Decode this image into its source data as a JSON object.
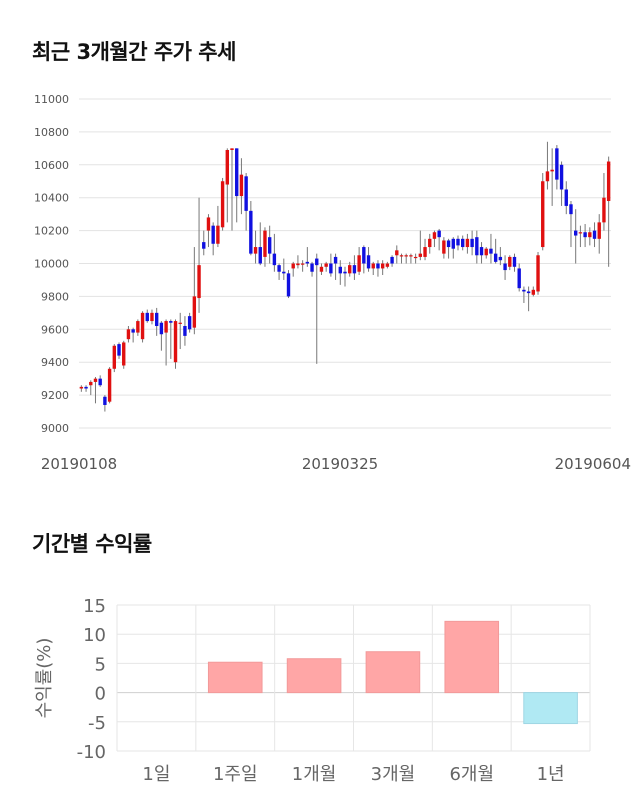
{
  "chart_data": [
    {
      "type": "candlestick",
      "title": "최근 3개월간 주가 추세",
      "xlabel": "",
      "ylabel": "",
      "ylim": [
        9000,
        11000
      ],
      "yticks": [
        9000,
        9200,
        9400,
        9600,
        9800,
        10000,
        10200,
        10400,
        10600,
        10800,
        11000
      ],
      "xticks": [
        "20190108",
        "20190325",
        "20190604"
      ],
      "grid": true,
      "up_color": "#e01010",
      "down_color": "#1010e0",
      "candles": [
        [
          9240,
          9250,
          9220,
          9260
        ],
        [
          9250,
          9240,
          9220,
          9260
        ],
        [
          9260,
          9280,
          9200,
          9290
        ],
        [
          9280,
          9300,
          9150,
          9310
        ],
        [
          9300,
          9260,
          9250,
          9320
        ],
        [
          9190,
          9140,
          9100,
          9200
        ],
        [
          9160,
          9360,
          9150,
          9370
        ],
        [
          9360,
          9500,
          9340,
          9510
        ],
        [
          9510,
          9440,
          9420,
          9520
        ],
        [
          9380,
          9520,
          9360,
          9530
        ],
        [
          9540,
          9600,
          9520,
          9620
        ],
        [
          9600,
          9580,
          9520,
          9610
        ],
        [
          9580,
          9650,
          9560,
          9660
        ],
        [
          9540,
          9700,
          9520,
          9710
        ],
        [
          9700,
          9650,
          9640,
          9720
        ],
        [
          9650,
          9700,
          9630,
          9720
        ],
        [
          9700,
          9620,
          9560,
          9730
        ],
        [
          9640,
          9570,
          9470,
          9650
        ],
        [
          9580,
          9650,
          9380,
          9660
        ],
        [
          9650,
          9640,
          9420,
          9660
        ],
        [
          9400,
          9650,
          9360,
          9660
        ],
        [
          9640,
          9640,
          9480,
          9700
        ],
        [
          9620,
          9560,
          9500,
          9680
        ],
        [
          9680,
          9600,
          9580,
          9700
        ],
        [
          9610,
          9800,
          9570,
          10100
        ],
        [
          9790,
          9990,
          9700,
          10400
        ],
        [
          10130,
          10090,
          10050,
          10200
        ],
        [
          10200,
          10280,
          10100,
          10300
        ],
        [
          10230,
          10120,
          10050,
          10250
        ],
        [
          10120,
          10230,
          10100,
          10350
        ],
        [
          10220,
          10500,
          10200,
          10520
        ],
        [
          10480,
          10690,
          10250,
          10700
        ],
        [
          10690,
          10700,
          10200,
          10700
        ],
        [
          10700,
          10410,
          10250,
          10700
        ],
        [
          10410,
          10540,
          10300,
          10640
        ],
        [
          10530,
          10320,
          10200,
          10550
        ],
        [
          10320,
          10060,
          10050,
          10380
        ],
        [
          10060,
          10100,
          10000,
          10200
        ],
        [
          10100,
          10000,
          9990,
          10250
        ],
        [
          10040,
          10200,
          9980,
          10220
        ],
        [
          10160,
          10060,
          10000,
          10230
        ],
        [
          10060,
          9990,
          9950,
          10180
        ],
        [
          9990,
          9950,
          9900,
          10000
        ],
        [
          9950,
          9940,
          9900,
          10030
        ],
        [
          9940,
          9800,
          9790,
          9960
        ],
        [
          9970,
          10000,
          9920,
          10010
        ],
        [
          9990,
          10000,
          9970,
          10050
        ],
        [
          10000,
          10000,
          9950,
          10020
        ],
        [
          10010,
          10000,
          9980,
          10100
        ],
        [
          10000,
          9950,
          9920,
          10010
        ],
        [
          10030,
          9990,
          9390,
          10060
        ],
        [
          9950,
          9980,
          9930,
          10000
        ],
        [
          9980,
          10000,
          9950,
          10010
        ],
        [
          10000,
          9940,
          9920,
          10060
        ],
        [
          10040,
          10000,
          9900,
          10060
        ],
        [
          9980,
          9940,
          9870,
          10020
        ],
        [
          9950,
          9940,
          9860,
          9980
        ],
        [
          9940,
          9990,
          9920,
          10010
        ],
        [
          9990,
          9940,
          9900,
          10050
        ],
        [
          9950,
          10050,
          9930,
          10100
        ],
        [
          10100,
          10000,
          9940,
          10110
        ],
        [
          10050,
          9970,
          9950,
          10100
        ],
        [
          9970,
          10000,
          9930,
          10010
        ],
        [
          10000,
          9970,
          9920,
          10020
        ],
        [
          9970,
          10000,
          9930,
          10020
        ],
        [
          9980,
          10000,
          9970,
          10010
        ],
        [
          10040,
          10000,
          9980,
          10050
        ],
        [
          10050,
          10080,
          10000,
          10110
        ],
        [
          10050,
          10050,
          10000,
          10060
        ],
        [
          10050,
          10050,
          10000,
          10060
        ],
        [
          10050,
          10050,
          10000,
          10060
        ],
        [
          10040,
          10040,
          10000,
          10060
        ],
        [
          10040,
          10060,
          10020,
          10200
        ],
        [
          10040,
          10100,
          10020,
          10150
        ],
        [
          10100,
          10150,
          10060,
          10180
        ],
        [
          10150,
          10190,
          10100,
          10200
        ],
        [
          10200,
          10160,
          10080,
          10210
        ],
        [
          10060,
          10140,
          10030,
          10160
        ],
        [
          10140,
          10100,
          10030,
          10150
        ],
        [
          10150,
          10090,
          10030,
          10160
        ],
        [
          10150,
          10110,
          10080,
          10170
        ],
        [
          10150,
          10100,
          10080,
          10170
        ],
        [
          10100,
          10150,
          10060,
          10180
        ],
        [
          10150,
          10100,
          10050,
          10200
        ],
        [
          10160,
          10050,
          10000,
          10200
        ],
        [
          10100,
          10050,
          10000,
          10130
        ],
        [
          10050,
          10090,
          10030,
          10100
        ],
        [
          10090,
          10060,
          10000,
          10180
        ],
        [
          10060,
          10010,
          10000,
          10150
        ],
        [
          10040,
          10020,
          9990,
          10100
        ],
        [
          10000,
          9960,
          9900,
          10050
        ],
        [
          9980,
          10040,
          9960,
          10050
        ],
        [
          10040,
          9980,
          9950,
          10060
        ],
        [
          9970,
          9850,
          9830,
          10000
        ],
        [
          9840,
          9830,
          9760,
          9860
        ],
        [
          9830,
          9820,
          9710,
          9860
        ],
        [
          9810,
          9840,
          9800,
          9860
        ],
        [
          9830,
          10050,
          9810,
          10070
        ],
        [
          10100,
          10500,
          10080,
          10550
        ],
        [
          10500,
          10560,
          10450,
          10740
        ],
        [
          10560,
          10570,
          10350,
          10700
        ],
        [
          10700,
          10510,
          10450,
          10720
        ],
        [
          10600,
          10450,
          10350,
          10620
        ],
        [
          10450,
          10350,
          10300,
          10500
        ],
        [
          10360,
          10300,
          10100,
          10380
        ],
        [
          10200,
          10170,
          10000,
          10330
        ],
        [
          10190,
          10190,
          10100,
          10230
        ],
        [
          10190,
          10160,
          10100,
          10240
        ],
        [
          10160,
          10190,
          10110,
          10220
        ],
        [
          10200,
          10150,
          10100,
          10250
        ],
        [
          10150,
          10250,
          10060,
          10300
        ],
        [
          10250,
          10400,
          10200,
          10550
        ],
        [
          10380,
          10620,
          9980,
          10650
        ]
      ]
    },
    {
      "type": "bar",
      "title": "기간별 수익률",
      "xlabel": "",
      "ylabel": "수익률(%)",
      "ylim": [
        -10,
        15
      ],
      "yticks": [
        -10,
        -5,
        0,
        5,
        10,
        15
      ],
      "categories": [
        "1일",
        "1주일",
        "1개월",
        "3개월",
        "6개월",
        "1년"
      ],
      "values": [
        0,
        5.2,
        5.8,
        7.0,
        12.2,
        -5.3
      ],
      "positive_color": "#ffa6a6",
      "negative_color": "#b0e9f3",
      "grid": true
    }
  ]
}
